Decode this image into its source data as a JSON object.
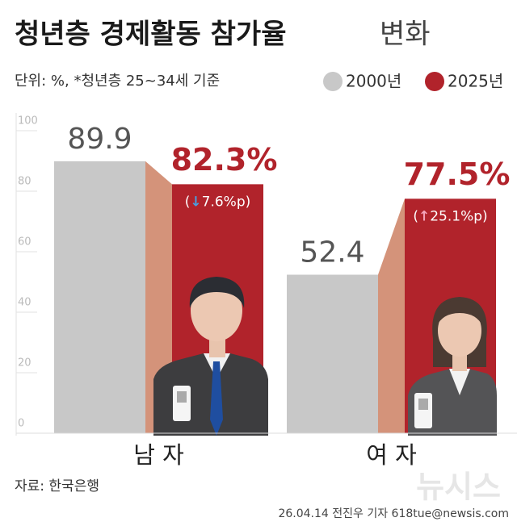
{
  "chart_data": {
    "type": "bar",
    "title": "청년층 경제활동 참가율",
    "title_suffix": "변화",
    "subtitle": "단위: %, *청년층 25~34세 기준",
    "categories": [
      "남 자",
      "여 자"
    ],
    "series": [
      {
        "name": "2000년",
        "color": "#c8c8c8",
        "values": [
          89.9,
          52.4
        ]
      },
      {
        "name": "2025년",
        "color": "#b1232b",
        "values": [
          82.3,
          77.5
        ],
        "value_labels": [
          "82.3%",
          "77.5%"
        ]
      }
    ],
    "changes": [
      {
        "open": "(",
        "arrow": "↓",
        "arrow_color": "#4a9fe0",
        "text": "7.6%p)"
      },
      {
        "open": "(",
        "arrow": "↑",
        "arrow_color": "#f4a3b8",
        "text": "25.1%p)"
      }
    ],
    "connector_color": "#d4937a",
    "ylim": [
      0,
      100
    ],
    "yticks": [
      0,
      20,
      40,
      60,
      80,
      100
    ],
    "source": "자료: 한국은행",
    "watermark": "뉴시스",
    "credit": "26.04.14 전진우 기자 618tue@newsis.com"
  }
}
